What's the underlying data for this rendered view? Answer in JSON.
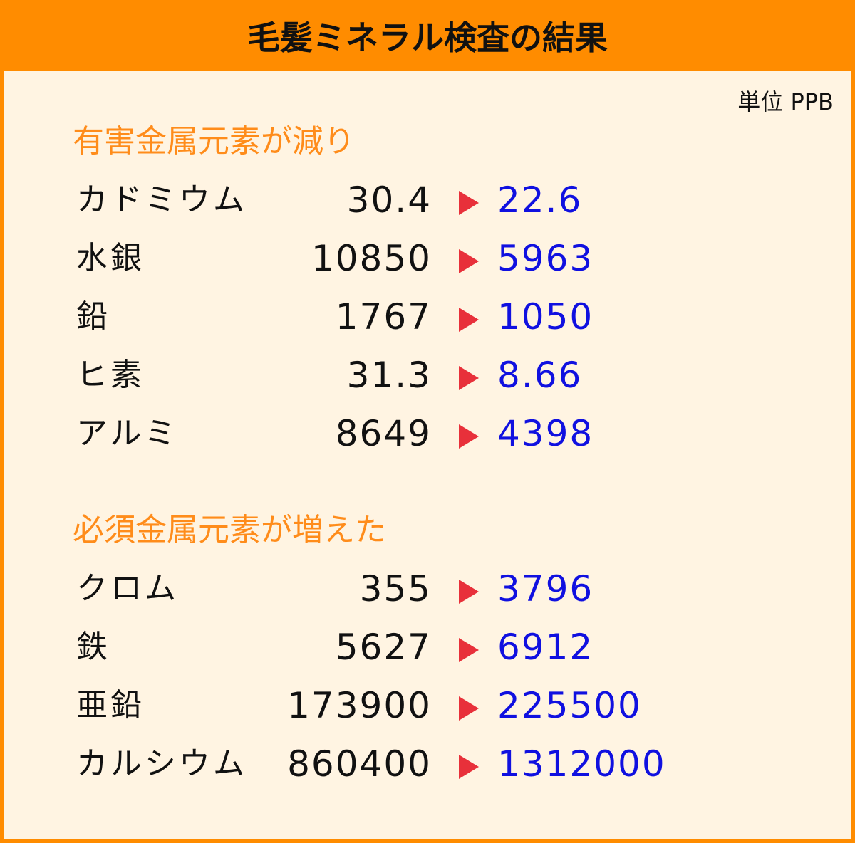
{
  "title": "毛髪ミネラル検査の結果",
  "unit": "単位 PPB",
  "colors": {
    "header": "#FF8C00",
    "section_title": "#FF8C1A",
    "after_value": "#1010E0",
    "arrow": "#E8303A"
  },
  "sections": [
    {
      "title": "有害金属元素が減り",
      "rows": [
        {
          "name": "カドミウム",
          "before": "30.4",
          "after": "22.6"
        },
        {
          "name": "水銀",
          "before": "10850",
          "after": "5963"
        },
        {
          "name": "鉛",
          "before": "1767",
          "after": "1050"
        },
        {
          "name": "ヒ素",
          "before": "31.3",
          "after": "8.66"
        },
        {
          "name": "アルミ",
          "before": "8649",
          "after": "4398"
        }
      ]
    },
    {
      "title": "必須金属元素が増えた",
      "rows": [
        {
          "name": "クロム",
          "before": "355",
          "after": "3796"
        },
        {
          "name": "鉄",
          "before": "5627",
          "after": "6912"
        },
        {
          "name": "亜鉛",
          "before": "173900",
          "after": "225500"
        },
        {
          "name": "カルシウム",
          "before": "860400",
          "after": "1312000"
        }
      ]
    }
  ]
}
